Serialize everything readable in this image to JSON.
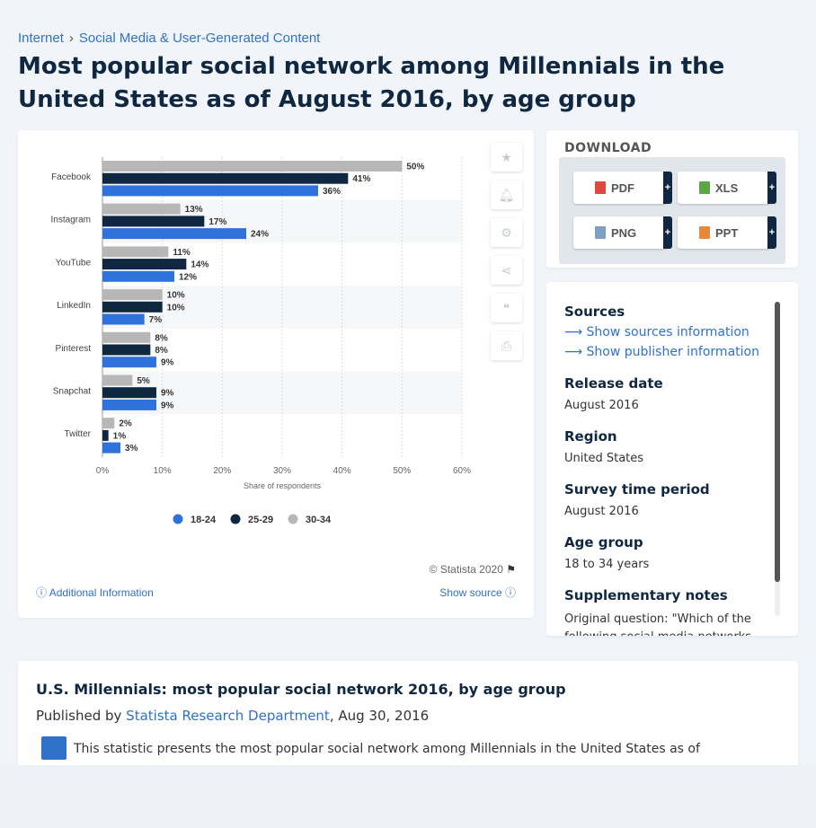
{
  "breadcrumb": {
    "items": [
      "Internet",
      "Social Media & User-Generated Content"
    ],
    "separator": "›"
  },
  "page_title": "Most popular social network among Millennials in the United States as of August 2016, by age group",
  "chart_data": {
    "type": "bar",
    "orientation": "horizontal",
    "categories": [
      "Facebook",
      "Instagram",
      "YouTube",
      "LinkedIn",
      "Pinterest",
      "Snapchat",
      "Twitter"
    ],
    "series": [
      {
        "name": "30-34",
        "color": "#b7b7b7",
        "values": [
          50,
          13,
          11,
          10,
          8,
          5,
          2
        ]
      },
      {
        "name": "25-29",
        "color": "#0f2741",
        "values": [
          41,
          17,
          14,
          10,
          8,
          9,
          1
        ]
      },
      {
        "name": "18-24",
        "color": "#2f72dc",
        "values": [
          36,
          24,
          12,
          7,
          9,
          9,
          3
        ]
      }
    ],
    "legend_order": [
      "18-24",
      "25-29",
      "30-34"
    ],
    "xlabel": "Share of respondents",
    "xlim": [
      0,
      60
    ],
    "xticks": [
      "0%",
      "10%",
      "20%",
      "30%",
      "40%",
      "50%",
      "60%"
    ],
    "value_suffix": "%",
    "legend_position": "bottom",
    "grid": true
  },
  "chart_footer": {
    "copyright": "© Statista 2020",
    "additional_info": "Additional Information",
    "show_source": "Show source"
  },
  "download": {
    "title": "DOWNLOAD",
    "buttons": [
      {
        "label": "PDF",
        "icon": "pdf-file-icon",
        "color": "#e0483e"
      },
      {
        "label": "XLS",
        "icon": "xls-file-icon",
        "color": "#5aa845"
      },
      {
        "label": "PNG",
        "icon": "png-file-icon",
        "color": "#7e9fc4"
      },
      {
        "label": "PPT",
        "icon": "ppt-file-icon",
        "color": "#e8893a"
      }
    ],
    "plus": "+"
  },
  "info": {
    "sources_label": "Sources",
    "show_sources": "Show sources information",
    "show_publisher": "Show publisher information",
    "release_label": "Release date",
    "release_value": "August 2016",
    "region_label": "Region",
    "region_value": "United States",
    "survey_label": "Survey time period",
    "survey_value": "August 2016",
    "age_label": "Age group",
    "age_value": "18 to 34 years",
    "notes_label": "Supplementary notes",
    "notes_value": "Original question: \"Which of the following social media networks do you use most often?\""
  },
  "description": {
    "title": "U.S. Millennials: most popular social network 2016, by age group",
    "published_prefix": "Published by",
    "publisher": "Statista Research Department",
    "date": ", Aug 30, 2016",
    "text": "This statistic presents the most popular social network among Millennials in the United States as of"
  }
}
